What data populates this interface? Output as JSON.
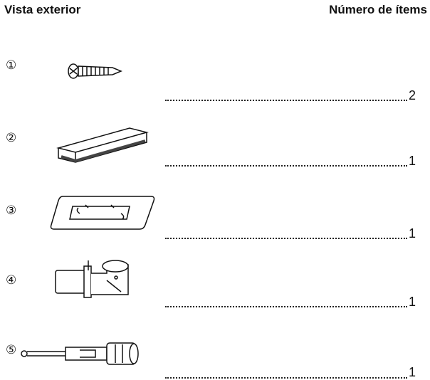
{
  "header": {
    "left": "Vista exterior",
    "right": "Número de ítems"
  },
  "items": [
    {
      "index": "①",
      "quantity": 2
    },
    {
      "index": "②",
      "quantity": 1
    },
    {
      "index": "③",
      "quantity": 1
    },
    {
      "index": "④",
      "quantity": 1
    },
    {
      "index": "⑤",
      "quantity": 1
    }
  ]
}
